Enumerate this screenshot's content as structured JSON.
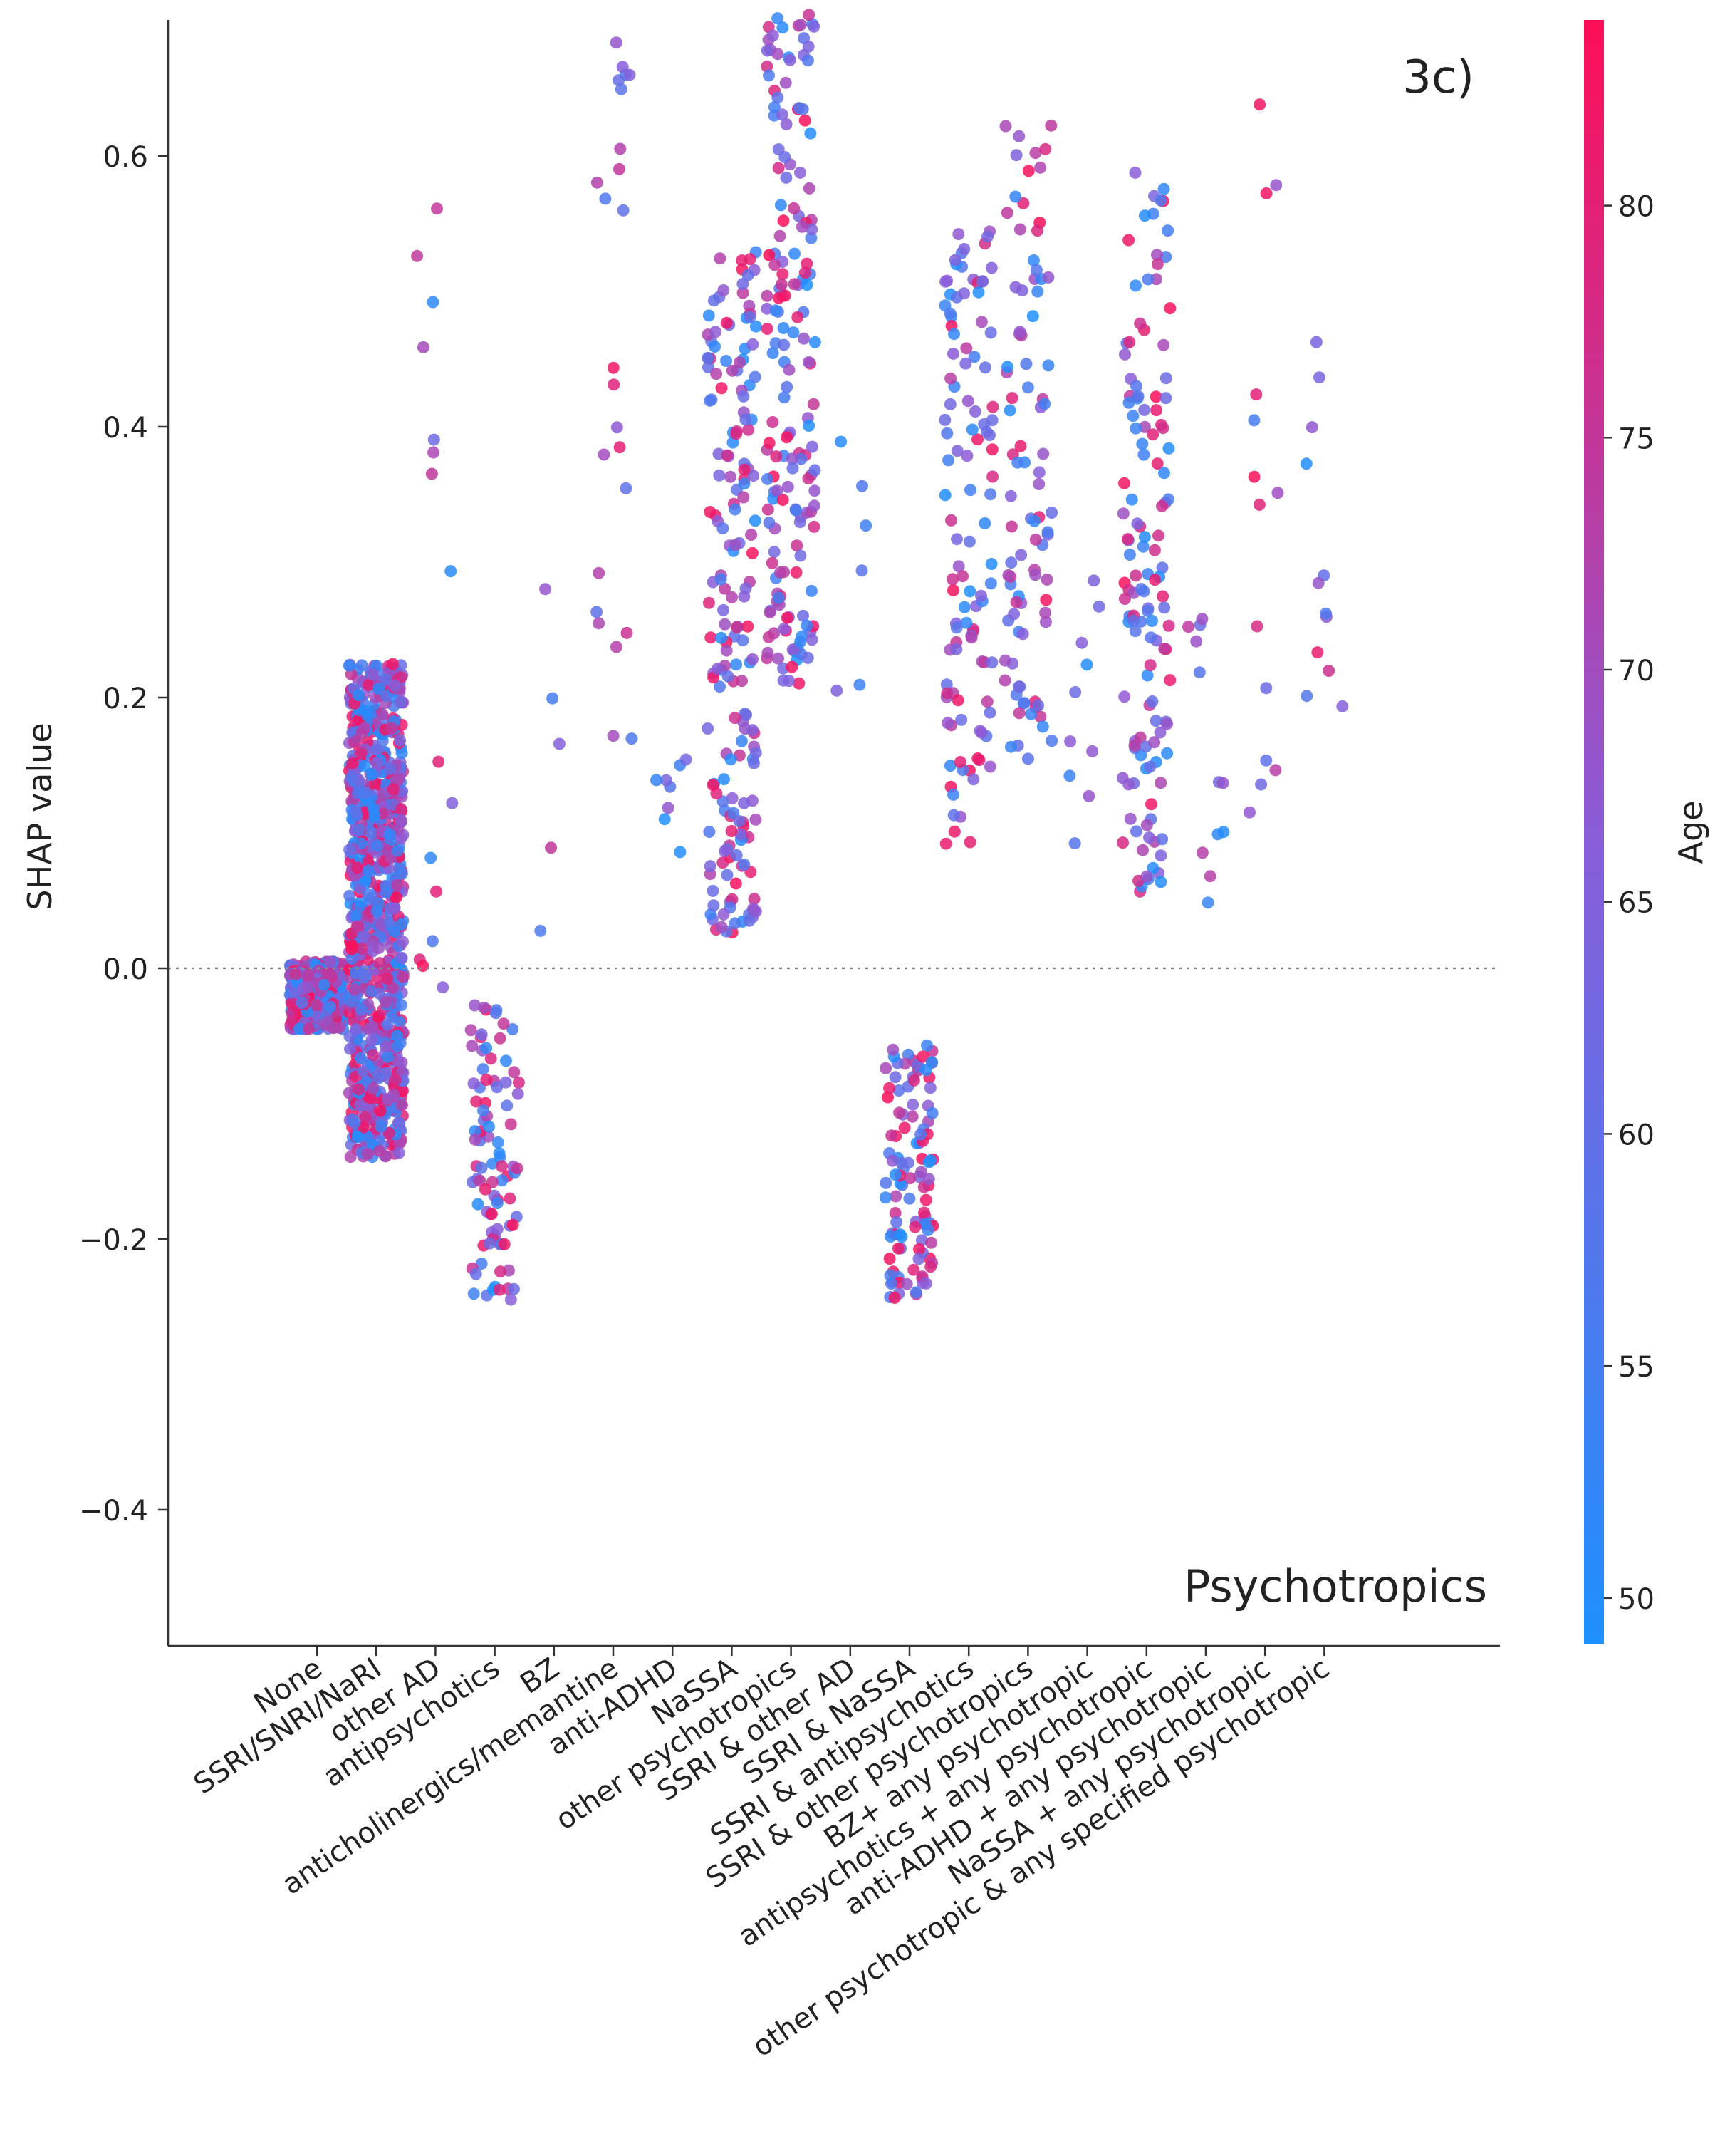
{
  "chart_data": {
    "type": "scatter",
    "panel_label": "3c)",
    "feature_name": "Psychotropics",
    "ylabel": "SHAP value",
    "ylim": [
      -0.5,
      0.7
    ],
    "yticks": [
      -0.4,
      -0.2,
      0.0,
      0.2,
      0.4,
      0.6
    ],
    "ytick_labels": [
      "−0.4",
      "−0.2",
      "0.0",
      "0.2",
      "0.4",
      "0.6"
    ],
    "zero_line": true,
    "grid": false,
    "categories": [
      "None",
      "SSRI/SNRI/NaRI",
      "other AD",
      "antipsychotics",
      "BZ",
      "anticholinergics/memantine",
      "anti-ADHD",
      "NaSSA",
      "other psychotropics",
      "SSRI & other AD",
      "SSRI & NaSSA",
      "SSRI & antipsychotics",
      "SSRI & other psychotropics",
      "BZ+ any psychotropic",
      "antipsychotics + any psychotropic",
      "anti-ADHD + any psychotropic",
      "NaSSA + any psychotropic",
      "other psychotropic & any specified psychotropic"
    ],
    "colorbar": {
      "label": "Age",
      "min": 49,
      "max": 84,
      "ticks": [
        50,
        55,
        60,
        65,
        70,
        75,
        80
      ],
      "color_low": "#1e90ff",
      "color_mid": "#8a5cd8",
      "color_high": "#ff0d57"
    },
    "series": [
      {
        "category": "None",
        "n": 500,
        "y_range": [
          -0.045,
          0.005
        ],
        "age_range": [
          49,
          84
        ]
      },
      {
        "category": "SSRI/SNRI/NaRI",
        "n": 900,
        "y_range": [
          -0.14,
          0.225
        ],
        "age_range": [
          49,
          84
        ]
      },
      {
        "category": "other AD",
        "n": 16,
        "y_range": [
          -0.025,
          0.575
        ],
        "age_range": [
          49,
          84
        ]
      },
      {
        "category": "antipsychotics",
        "n": 90,
        "y_range": [
          -0.245,
          -0.02
        ],
        "age_range": [
          49,
          84
        ]
      },
      {
        "category": "BZ",
        "n": 5,
        "y_range": [
          0.02,
          0.3
        ],
        "age_range": [
          55,
          80
        ]
      },
      {
        "category": "anticholinergics/memantine",
        "n": 24,
        "y_range": [
          0.12,
          0.69
        ],
        "age_range": [
          55,
          84
        ]
      },
      {
        "category": "anti-ADHD",
        "n": 8,
        "y_range": [
          0.03,
          0.185
        ],
        "age_range": [
          49,
          70
        ]
      },
      {
        "category": "NaSSA",
        "n": 180,
        "y_range": [
          0.025,
          0.53
        ],
        "age_range": [
          49,
          84
        ]
      },
      {
        "category": "other psychotropics",
        "n": 170,
        "y_range": [
          0.21,
          0.705
        ],
        "age_range": [
          49,
          84
        ]
      },
      {
        "category": "SSRI & other AD",
        "n": 6,
        "y_range": [
          0.19,
          0.43
        ],
        "age_range": [
          49,
          75
        ]
      },
      {
        "category": "SSRI & NaSSA",
        "n": 110,
        "y_range": [
          -0.245,
          -0.055
        ],
        "age_range": [
          49,
          84
        ]
      },
      {
        "category": "SSRI & antipsychotics",
        "n": 110,
        "y_range": [
          0.08,
          0.55
        ],
        "age_range": [
          49,
          84
        ]
      },
      {
        "category": "SSRI & other psychotropics",
        "n": 90,
        "y_range": [
          0.15,
          0.63
        ],
        "age_range": [
          49,
          84
        ]
      },
      {
        "category": "BZ+ any psychotropic",
        "n": 10,
        "y_range": [
          0.08,
          0.3
        ],
        "age_range": [
          49,
          70
        ]
      },
      {
        "category": "antipsychotics + any psychotropic",
        "n": 130,
        "y_range": [
          0.055,
          0.59
        ],
        "age_range": [
          49,
          84
        ]
      },
      {
        "category": "anti-ADHD + any psychotropic",
        "n": 12,
        "y_range": [
          0.04,
          0.26
        ],
        "age_range": [
          49,
          75
        ]
      },
      {
        "category": "NaSSA + any psychotropic",
        "n": 14,
        "y_range": [
          0.075,
          0.665
        ],
        "age_range": [
          55,
          84
        ]
      },
      {
        "category": "other psychotropic & any specified psychotropic",
        "n": 12,
        "y_range": [
          0.165,
          0.47
        ],
        "age_range": [
          49,
          84
        ]
      }
    ]
  }
}
